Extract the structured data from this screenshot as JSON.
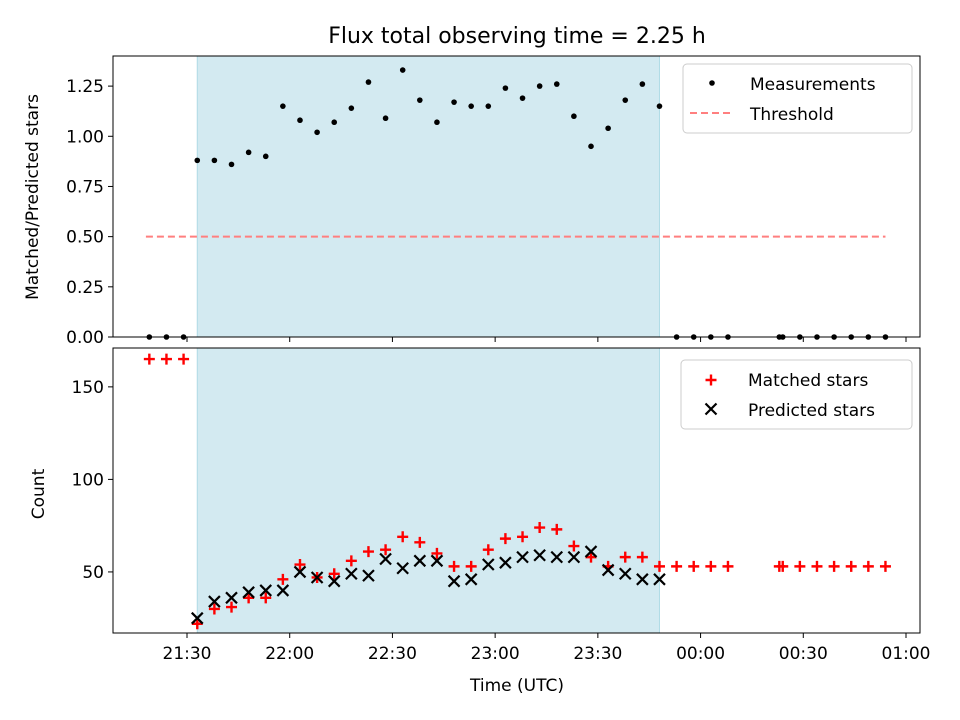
{
  "colors": {
    "measurement": "#000000",
    "threshold": "#ff7f7f",
    "matched": "#ff0000",
    "predicted": "#000000",
    "span": "#d3eaf1",
    "span_edge": "#b0dbe6"
  },
  "chart_data": [
    {
      "type": "scatter",
      "title": "Flux total observing time = 2.25 h",
      "xlabel": "",
      "ylabel": "Matched/Predicted stars",
      "ylim": [
        0,
        1.4
      ],
      "yticks": [
        "0.00",
        "0.25",
        "0.50",
        "0.75",
        "1.00",
        "1.25"
      ],
      "highlight_span": [
        "21:33",
        "23:48"
      ],
      "legend": {
        "position": "top-right",
        "labels": [
          "Measurements",
          "Threshold"
        ]
      },
      "series": [
        {
          "name": "Measurements",
          "x": [
            "21:19",
            "21:24",
            "21:29",
            "21:33",
            "21:38",
            "21:43",
            "21:48",
            "21:53",
            "21:58",
            "22:03",
            "22:08",
            "22:13",
            "22:18",
            "22:23",
            "22:28",
            "22:33",
            "22:38",
            "22:43",
            "22:48",
            "22:53",
            "22:58",
            "23:03",
            "23:08",
            "23:13",
            "23:18",
            "23:23",
            "23:28",
            "23:33",
            "23:38",
            "23:43",
            "23:48",
            "23:53",
            "23:58",
            "00:03",
            "00:08",
            "00:23",
            "00:24",
            "00:29",
            "00:34",
            "00:39",
            "00:44",
            "00:49",
            "00:54"
          ],
          "y": [
            0,
            0,
            0,
            0.88,
            0.88,
            0.86,
            0.92,
            0.9,
            1.15,
            1.08,
            1.02,
            1.07,
            1.14,
            1.27,
            1.09,
            1.33,
            1.18,
            1.07,
            1.17,
            1.15,
            1.15,
            1.24,
            1.19,
            1.25,
            1.26,
            1.1,
            0.95,
            1.04,
            1.18,
            1.26,
            1.15,
            0,
            0,
            0,
            0,
            0,
            0,
            0,
            0,
            0,
            0,
            0,
            0
          ]
        },
        {
          "name": "Threshold",
          "x": [
            "21:18",
            "00:54"
          ],
          "y": [
            0.5,
            0.5
          ]
        }
      ]
    },
    {
      "type": "scatter",
      "title": "",
      "xlabel": "Time (UTC)",
      "ylabel": "Count",
      "ylim": [
        17,
        171
      ],
      "yticks": [
        "50",
        "100",
        "150"
      ],
      "xticks": [
        "21:30",
        "22:00",
        "22:30",
        "23:00",
        "23:30",
        "00:00",
        "00:30",
        "01:00"
      ],
      "highlight_span": [
        "21:33",
        "23:48"
      ],
      "legend": {
        "position": "top-right",
        "labels": [
          "Matched stars",
          "Predicted stars"
        ]
      },
      "series": [
        {
          "name": "Matched stars",
          "x": [
            "21:19",
            "21:24",
            "21:29",
            "21:33",
            "21:38",
            "21:43",
            "21:48",
            "21:53",
            "21:58",
            "22:03",
            "22:08",
            "22:13",
            "22:18",
            "22:23",
            "22:28",
            "22:33",
            "22:38",
            "22:43",
            "22:48",
            "22:53",
            "22:58",
            "23:03",
            "23:08",
            "23:13",
            "23:18",
            "23:23",
            "23:28",
            "23:33",
            "23:38",
            "23:43",
            "23:48",
            "23:53",
            "23:58",
            "00:03",
            "00:08",
            "00:23",
            "00:24",
            "00:29",
            "00:34",
            "00:39",
            "00:44",
            "00:49",
            "00:54"
          ],
          "y": [
            165,
            165,
            165,
            22,
            30,
            31,
            36,
            36,
            46,
            54,
            47,
            49,
            56,
            61,
            62,
            69,
            66,
            60,
            53,
            53,
            62,
            68,
            69,
            74,
            73,
            64,
            58,
            53,
            58,
            58,
            53,
            53,
            53,
            53,
            53,
            53,
            53,
            53,
            53,
            53,
            53,
            53,
            53
          ]
        },
        {
          "name": "Predicted stars",
          "x": [
            "21:33",
            "21:38",
            "21:43",
            "21:48",
            "21:53",
            "21:58",
            "22:03",
            "22:08",
            "22:13",
            "22:18",
            "22:23",
            "22:28",
            "22:33",
            "22:38",
            "22:43",
            "22:48",
            "22:53",
            "22:58",
            "23:03",
            "23:08",
            "23:13",
            "23:18",
            "23:23",
            "23:28",
            "23:33",
            "23:38",
            "23:43",
            "23:48"
          ],
          "y": [
            25,
            34,
            36,
            39,
            40,
            40,
            50,
            47,
            45,
            49,
            48,
            57,
            52,
            56,
            56,
            45,
            46,
            54,
            55,
            58,
            59,
            58,
            58,
            61,
            51,
            49,
            46,
            46
          ]
        }
      ]
    }
  ]
}
